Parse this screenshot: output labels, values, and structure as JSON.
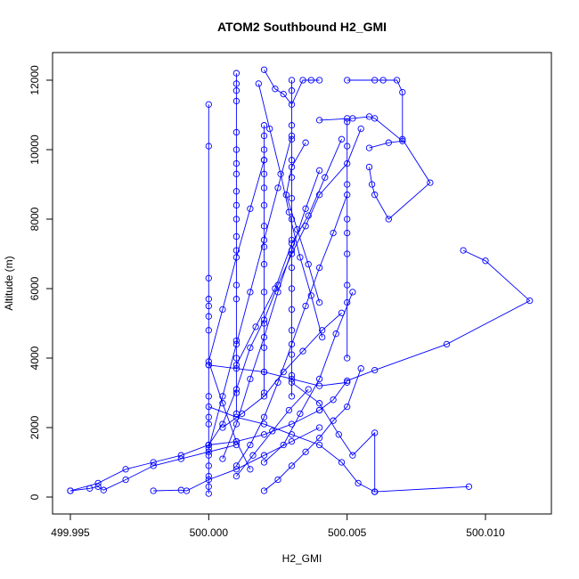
{
  "chart_data": {
    "type": "line",
    "title": "ATOM2 Southbound H2_GMI",
    "xlabel": "H2_GMI",
    "ylabel": "Altitude (m)",
    "xlim": [
      499.995,
      500.011
    ],
    "ylim": [
      0,
      12200
    ],
    "x_ticks": [
      "499.995",
      "500.000",
      "500.005",
      "500.010"
    ],
    "x_tick_values": [
      499.995,
      500.0,
      500.005,
      500.01
    ],
    "y_ticks": [
      "0",
      "2000",
      "4000",
      "6000",
      "8000",
      "10000",
      "12000"
    ],
    "y_tick_values": [
      0,
      2000,
      4000,
      6000,
      8000,
      10000,
      12000
    ],
    "series_color": "#0000ff",
    "series": [
      {
        "x": [
          500.0,
          500.0,
          500.0,
          500.0,
          500.0,
          500.0,
          500.0,
          500.0,
          500.0,
          500.0,
          500.0,
          500.0,
          500.0,
          500.0,
          500.0,
          500.0,
          500.0
        ],
        "y": [
          11300,
          10100,
          6300,
          5700,
          5500,
          5200,
          4800,
          3800,
          2900,
          2300,
          2100,
          1500,
          1200,
          900,
          600,
          300,
          100
        ]
      },
      {
        "x": [
          500.001,
          500.001,
          500.001,
          500.001,
          500.001,
          500.001,
          500.001,
          500.001,
          500.001,
          500.001,
          500.001,
          500.001,
          500.001,
          500.001,
          500.001,
          500.001,
          500.001,
          500.001,
          500.001
        ],
        "y": [
          12200,
          11900,
          11700,
          11400,
          10500,
          10000,
          9600,
          9300,
          8800,
          8400,
          8000,
          7500,
          7100,
          6100,
          5700,
          4500,
          4000,
          3000,
          2400
        ]
      },
      {
        "x": [
          500.002,
          500.002,
          500.002,
          500.002,
          500.002,
          500.002,
          500.002,
          500.002,
          500.002,
          500.002,
          500.002,
          500.002,
          500.002,
          500.002,
          500.002
        ],
        "y": [
          10700,
          10400,
          10000,
          9700,
          9300,
          8900,
          8400,
          7800,
          7200,
          6700,
          5900,
          5000,
          4300,
          3600,
          3000
        ]
      },
      {
        "x": [
          500.003,
          500.003,
          500.003,
          500.003,
          500.003,
          500.003,
          500.003,
          500.003,
          500.003,
          500.003,
          500.003,
          500.003,
          500.003,
          500.003,
          500.003,
          500.003
        ],
        "y": [
          12000,
          11700,
          10700,
          10300,
          9700,
          9200,
          8600,
          8000,
          7400,
          6600,
          6000,
          5400,
          4800,
          4100,
          3500,
          2900
        ]
      },
      {
        "x": [
          500.005,
          500.005,
          500.005,
          500.005,
          500.005,
          500.005,
          500.005,
          500.005,
          500.005,
          500.005
        ],
        "y": [
          10900,
          10800,
          10100,
          9000,
          8000,
          7600,
          7000,
          6100,
          5600,
          4000
        ]
      },
      {
        "x": [
          500.005,
          500.006,
          500.0063,
          500.0068,
          500.007,
          500.007,
          500.008,
          500.0065,
          500.006,
          500.0059,
          500.0058
        ],
        "y": [
          12000,
          12000,
          12000,
          12000,
          11650,
          10300,
          9050,
          8000,
          8700,
          9000,
          9500
        ]
      },
      {
        "x": [
          500.004,
          500.0052,
          500.0058,
          500.006,
          500.007,
          500.0065,
          500.0058
        ],
        "y": [
          10850,
          10900,
          10950,
          10900,
          10250,
          10200,
          10050
        ]
      },
      {
        "x": [
          500.002,
          500.0024,
          500.0027,
          500.003,
          500.0034,
          500.0037,
          500.004
        ],
        "y": [
          12300,
          11750,
          11600,
          11300,
          12000,
          12000,
          12000
        ]
      },
      {
        "x": [
          500.0092,
          500.01,
          500.0116,
          500.0086,
          500.006,
          500.005,
          500.0045,
          500.004
        ],
        "y": [
          7100,
          6800,
          5650,
          4400,
          3650,
          3350,
          2800,
          2500
        ]
      },
      {
        "x": [
          500.0094,
          500.006,
          500.0054,
          500.0048,
          500.004,
          500.003,
          500.002,
          500.001,
          500.0
        ],
        "y": [
          300,
          150,
          400,
          1000,
          1500,
          1800,
          2100,
          2300,
          2600
        ]
      },
      {
        "x": [
          500.006,
          500.006,
          500.006,
          500.0052,
          500.0047,
          500.004,
          500.003
        ],
        "y": [
          150,
          150,
          1850,
          1200,
          1800,
          2700,
          3300
        ]
      },
      {
        "x": [
          499.995,
          499.996,
          499.997,
          499.998,
          499.999,
          500.0,
          500.001,
          500.002,
          500.003,
          500.004
        ],
        "y": [
          180,
          400,
          800,
          1000,
          1200,
          1500,
          1600,
          1800,
          2100,
          2500
        ]
      },
      {
        "x": [
          499.995,
          499.9957,
          499.996,
          499.9962,
          499.997,
          499.998,
          499.999,
          500.0,
          500.001
        ],
        "y": [
          180,
          250,
          300,
          200,
          500,
          900,
          1100,
          1300,
          1500
        ]
      },
      {
        "x": [
          499.998,
          499.999,
          499.9992,
          500.0,
          500.001,
          500.002,
          500.003,
          500.004
        ],
        "y": [
          180,
          200,
          180,
          500,
          800,
          1200,
          1600,
          2000
        ]
      },
      {
        "x": [
          500.002,
          500.0025,
          500.003,
          500.0035,
          500.004,
          500.0045,
          500.005,
          500.0055
        ],
        "y": [
          180,
          500,
          900,
          1300,
          1700,
          2200,
          2600,
          3700
        ]
      },
      {
        "x": [
          500.0,
          500.0005,
          500.001,
          500.0015,
          500.002,
          500.0025,
          500.003,
          500.0035,
          500.004,
          500.005,
          500.0055
        ],
        "y": [
          1500,
          2100,
          3100,
          4300,
          5100,
          6100,
          7000,
          7800,
          8700,
          9600,
          10600
        ]
      },
      {
        "x": [
          500.001,
          500.0017,
          500.0024,
          500.003,
          500.0036,
          500.0042,
          500.0048
        ],
        "y": [
          3800,
          4900,
          6000,
          7300,
          8100,
          9200,
          10300
        ]
      },
      {
        "x": [
          500.002,
          500.0015,
          500.001,
          500.0005,
          500.0,
          500.0005,
          500.001,
          500.0015
        ],
        "y": [
          9700,
          8300,
          6900,
          5400,
          3900,
          2700,
          1600,
          800
        ]
      },
      {
        "x": [
          500.003,
          500.0025,
          500.002,
          500.0015,
          500.001,
          500.0005,
          500.0
        ],
        "y": [
          10400,
          8900,
          7400,
          5900,
          4400,
          2900,
          1400
        ]
      },
      {
        "x": [
          500.004,
          500.0035,
          500.003,
          500.0025,
          500.002,
          500.0015,
          500.001,
          500.0005
        ],
        "y": [
          9400,
          8300,
          7100,
          5900,
          4600,
          3400,
          2100,
          1100
        ]
      },
      {
        "x": [
          500.005,
          500.0045,
          500.004,
          500.0035,
          500.003,
          500.0025,
          500.002,
          500.0015,
          500.001
        ],
        "y": [
          8700,
          7600,
          6600,
          5500,
          4400,
          3300,
          2300,
          1500,
          900
        ]
      },
      {
        "x": [
          500.0035,
          500.003,
          500.0028,
          500.0032,
          500.0036,
          500.004
        ],
        "y": [
          10200,
          9500,
          8700,
          7700,
          6700,
          5600
        ]
      },
      {
        "x": [
          500.0018,
          500.0022,
          500.0026,
          500.0029,
          500.0033,
          500.0037,
          500.0041
        ],
        "y": [
          11900,
          10600,
          9300,
          8200,
          6900,
          5800,
          4600
        ]
      },
      {
        "x": [
          500.0,
          500.001,
          500.002,
          500.003,
          500.004,
          500.005
        ],
        "y": [
          3800,
          3700,
          3600,
          3400,
          3200,
          3300
        ]
      },
      {
        "x": [
          500.0005,
          500.0012,
          500.002,
          500.0027,
          500.0034,
          500.0041,
          500.0048
        ],
        "y": [
          2000,
          2400,
          2900,
          3600,
          4200,
          4800,
          5300
        ]
      },
      {
        "x": [
          500.002,
          500.0027,
          500.0033,
          500.004,
          500.0046,
          500.0052
        ],
        "y": [
          1000,
          1500,
          2400,
          3400,
          4700,
          5900
        ]
      },
      {
        "x": [
          500.001,
          500.0016,
          500.0023,
          500.0029,
          500.0036
        ],
        "y": [
          600,
          1200,
          1900,
          2500,
          3100
        ]
      }
    ]
  }
}
